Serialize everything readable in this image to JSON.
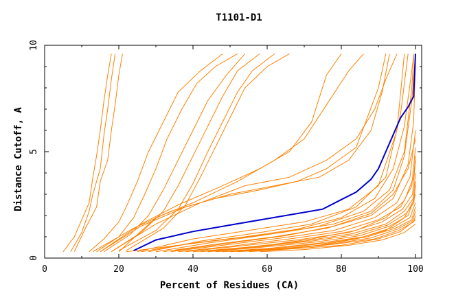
{
  "chart_data": {
    "type": "line",
    "title": "T1101-D1",
    "xlabel": "Percent of Residues (CA)",
    "ylabel": "Distance Cutoff, A",
    "xlim": [
      0,
      100
    ],
    "ylim": [
      0,
      10
    ],
    "xticks": [
      "0",
      "20",
      "40",
      "60",
      "80",
      "100"
    ],
    "yticks": [
      "0",
      "5",
      "10"
    ],
    "grid": false,
    "legend": "none",
    "colors": {
      "models": "#ff8000",
      "highlight": "#0000cc"
    },
    "highlight_series": {
      "points": [
        [
          24,
          0.35
        ],
        [
          30,
          0.85
        ],
        [
          40,
          1.25
        ],
        [
          50,
          1.55
        ],
        [
          60,
          1.85
        ],
        [
          70,
          2.15
        ],
        [
          75,
          2.3
        ],
        [
          80,
          2.75
        ],
        [
          84,
          3.1
        ],
        [
          88,
          3.7
        ],
        [
          90,
          4.2
        ],
        [
          92,
          5.0
        ],
        [
          94,
          5.8
        ],
        [
          96,
          6.6
        ],
        [
          98,
          7.1
        ],
        [
          99.5,
          7.6
        ],
        [
          100,
          9.6
        ]
      ]
    },
    "series": [
      {
        "points": [
          [
            5,
            0.3
          ],
          [
            8,
            1.0
          ],
          [
            10,
            1.8
          ],
          [
            12,
            2.6
          ],
          [
            13,
            3.8
          ],
          [
            14,
            4.8
          ],
          [
            15,
            6.0
          ],
          [
            16,
            7.4
          ],
          [
            17,
            8.6
          ],
          [
            18,
            9.6
          ]
        ]
      },
      {
        "points": [
          [
            7,
            0.3
          ],
          [
            10,
            1.2
          ],
          [
            12,
            2.2
          ],
          [
            13,
            3.0
          ],
          [
            15,
            4.2
          ],
          [
            16,
            5.8
          ],
          [
            17,
            7.0
          ],
          [
            18,
            8.4
          ],
          [
            19,
            9.6
          ]
        ]
      },
      {
        "points": [
          [
            8,
            0.3
          ],
          [
            11,
            1.4
          ],
          [
            14,
            2.4
          ],
          [
            15,
            3.6
          ],
          [
            17,
            4.6
          ],
          [
            18,
            6.0
          ],
          [
            19,
            7.2
          ],
          [
            20,
            8.6
          ],
          [
            21,
            9.6
          ]
        ]
      },
      {
        "points": [
          [
            12,
            0.3
          ],
          [
            16,
            0.9
          ],
          [
            20,
            1.7
          ],
          [
            22,
            2.4
          ],
          [
            25,
            3.6
          ],
          [
            28,
            5.0
          ],
          [
            32,
            6.4
          ],
          [
            36,
            7.8
          ],
          [
            42,
            8.8
          ],
          [
            48,
            9.6
          ]
        ]
      },
      {
        "points": [
          [
            14,
            0.3
          ],
          [
            20,
            1.0
          ],
          [
            24,
            1.9
          ],
          [
            27,
            3.0
          ],
          [
            30,
            4.2
          ],
          [
            33,
            5.6
          ],
          [
            37,
            7.0
          ],
          [
            41,
            8.2
          ],
          [
            46,
            9.0
          ],
          [
            52,
            9.6
          ]
        ]
      },
      {
        "points": [
          [
            16,
            0.3
          ],
          [
            23,
            1.1
          ],
          [
            28,
            2.0
          ],
          [
            32,
            3.2
          ],
          [
            36,
            4.6
          ],
          [
            40,
            6.0
          ],
          [
            44,
            7.4
          ],
          [
            49,
            8.6
          ],
          [
            54,
            9.6
          ]
        ]
      },
      {
        "points": [
          [
            18,
            0.3
          ],
          [
            26,
            1.2
          ],
          [
            32,
            2.2
          ],
          [
            36,
            3.4
          ],
          [
            40,
            4.8
          ],
          [
            44,
            6.2
          ],
          [
            48,
            7.6
          ],
          [
            52,
            8.8
          ],
          [
            58,
            9.6
          ]
        ]
      },
      {
        "points": [
          [
            20,
            0.35
          ],
          [
            30,
            1.3
          ],
          [
            36,
            2.3
          ],
          [
            40,
            3.5
          ],
          [
            44,
            5.0
          ],
          [
            48,
            6.4
          ],
          [
            52,
            7.8
          ],
          [
            56,
            8.8
          ],
          [
            62,
            9.6
          ]
        ]
      },
      {
        "points": [
          [
            22,
            0.35
          ],
          [
            32,
            1.4
          ],
          [
            38,
            2.5
          ],
          [
            42,
            3.8
          ],
          [
            46,
            5.2
          ],
          [
            50,
            6.6
          ],
          [
            54,
            8.0
          ],
          [
            60,
            9.0
          ],
          [
            66,
            9.6
          ]
        ]
      },
      {
        "points": [
          [
            15,
            0.3
          ],
          [
            26,
            1.6
          ],
          [
            36,
            2.5
          ],
          [
            48,
            3.4
          ],
          [
            58,
            4.2
          ],
          [
            66,
            5.0
          ],
          [
            72,
            6.4
          ],
          [
            76,
            8.6
          ],
          [
            80,
            9.6
          ]
        ]
      },
      {
        "points": [
          [
            20,
            0.3
          ],
          [
            30,
            1.9
          ],
          [
            40,
            2.6
          ],
          [
            52,
            3.6
          ],
          [
            62,
            4.6
          ],
          [
            70,
            5.6
          ],
          [
            76,
            7.2
          ],
          [
            82,
            8.8
          ],
          [
            86,
            9.6
          ]
        ]
      },
      {
        "points": [
          [
            13,
            0.3
          ],
          [
            24,
            1.4
          ],
          [
            34,
            2.2
          ],
          [
            46,
            2.8
          ],
          [
            58,
            3.2
          ],
          [
            68,
            3.6
          ],
          [
            76,
            4.2
          ],
          [
            84,
            5.2
          ],
          [
            90,
            8.0
          ],
          [
            92,
            9.6
          ]
        ]
      },
      {
        "points": [
          [
            15,
            0.3
          ],
          [
            26,
            1.5
          ],
          [
            38,
            2.4
          ],
          [
            50,
            3.0
          ],
          [
            62,
            3.4
          ],
          [
            74,
            3.8
          ],
          [
            82,
            4.6
          ],
          [
            88,
            6.0
          ],
          [
            91,
            7.8
          ],
          [
            93,
            9.6
          ]
        ]
      },
      {
        "points": [
          [
            18,
            0.3
          ],
          [
            30,
            1.6
          ],
          [
            42,
            2.6
          ],
          [
            54,
            3.4
          ],
          [
            66,
            3.8
          ],
          [
            76,
            4.6
          ],
          [
            84,
            5.6
          ],
          [
            89,
            7.0
          ],
          [
            92,
            8.4
          ],
          [
            95,
            9.6
          ]
        ]
      },
      {
        "points": [
          [
            25,
            0.3
          ],
          [
            40,
            0.9
          ],
          [
            55,
            1.3
          ],
          [
            70,
            1.7
          ],
          [
            82,
            2.3
          ],
          [
            90,
            3.4
          ],
          [
            95,
            6.0
          ],
          [
            97,
            9.6
          ]
        ]
      },
      {
        "points": [
          [
            28,
            0.3
          ],
          [
            42,
            0.8
          ],
          [
            58,
            1.2
          ],
          [
            72,
            1.6
          ],
          [
            84,
            2.4
          ],
          [
            92,
            3.8
          ],
          [
            96,
            6.8
          ],
          [
            98,
            9.6
          ]
        ]
      },
      {
        "points": [
          [
            30,
            0.3
          ],
          [
            44,
            0.7
          ],
          [
            60,
            1.1
          ],
          [
            74,
            1.5
          ],
          [
            86,
            2.2
          ],
          [
            93,
            3.2
          ],
          [
            97,
            5.0
          ],
          [
            99,
            8.0
          ],
          [
            99.6,
            9.6
          ]
        ]
      },
      {
        "points": [
          [
            32,
            0.3
          ],
          [
            46,
            0.65
          ],
          [
            62,
            1.0
          ],
          [
            76,
            1.4
          ],
          [
            88,
            2.0
          ],
          [
            94,
            2.8
          ],
          [
            98,
            4.4
          ],
          [
            99.5,
            6.4
          ],
          [
            100,
            9.2
          ]
        ]
      },
      {
        "points": [
          [
            34,
            0.3
          ],
          [
            48,
            0.6
          ],
          [
            64,
            0.95
          ],
          [
            78,
            1.3
          ],
          [
            89,
            1.9
          ],
          [
            95,
            2.6
          ],
          [
            98.5,
            3.8
          ],
          [
            100,
            6.0
          ]
        ]
      },
      {
        "points": [
          [
            36,
            0.3
          ],
          [
            50,
            0.55
          ],
          [
            66,
            0.9
          ],
          [
            80,
            1.25
          ],
          [
            90,
            1.8
          ],
          [
            96,
            2.4
          ],
          [
            99,
            3.4
          ],
          [
            100,
            5.2
          ]
        ]
      },
      {
        "points": [
          [
            38,
            0.3
          ],
          [
            52,
            0.55
          ],
          [
            68,
            0.85
          ],
          [
            82,
            1.2
          ],
          [
            91,
            1.7
          ],
          [
            96.5,
            2.3
          ],
          [
            99.2,
            3.0
          ],
          [
            100,
            4.6
          ]
        ]
      },
      {
        "points": [
          [
            40,
            0.3
          ],
          [
            54,
            0.5
          ],
          [
            70,
            0.8
          ],
          [
            83,
            1.15
          ],
          [
            92,
            1.6
          ],
          [
            97,
            2.2
          ],
          [
            99.4,
            2.8
          ],
          [
            100,
            4.0
          ]
        ]
      },
      {
        "points": [
          [
            42,
            0.3
          ],
          [
            56,
            0.5
          ],
          [
            72,
            0.8
          ],
          [
            84,
            1.1
          ],
          [
            92.5,
            1.55
          ],
          [
            97.5,
            2.1
          ],
          [
            99.6,
            2.6
          ],
          [
            100,
            3.6
          ]
        ]
      },
      {
        "points": [
          [
            44,
            0.3
          ],
          [
            58,
            0.5
          ],
          [
            73,
            0.75
          ],
          [
            85,
            1.05
          ],
          [
            93,
            1.5
          ],
          [
            98,
            2.0
          ],
          [
            100,
            3.0
          ]
        ]
      },
      {
        "points": [
          [
            46,
            0.3
          ],
          [
            60,
            0.45
          ],
          [
            74,
            0.7
          ],
          [
            86,
            1.0
          ],
          [
            94,
            1.45
          ],
          [
            98.5,
            1.9
          ],
          [
            100,
            2.6
          ]
        ]
      },
      {
        "points": [
          [
            48,
            0.3
          ],
          [
            62,
            0.45
          ],
          [
            76,
            0.7
          ],
          [
            87,
            1.0
          ],
          [
            94.5,
            1.4
          ],
          [
            99,
            1.8
          ],
          [
            100,
            2.4
          ]
        ]
      },
      {
        "points": [
          [
            50,
            0.3
          ],
          [
            64,
            0.45
          ],
          [
            77,
            0.65
          ],
          [
            88,
            0.95
          ],
          [
            95,
            1.35
          ],
          [
            99.2,
            1.75
          ],
          [
            100,
            2.2
          ]
        ]
      },
      {
        "points": [
          [
            52,
            0.3
          ],
          [
            66,
            0.45
          ],
          [
            78,
            0.65
          ],
          [
            89,
            0.9
          ],
          [
            95.5,
            1.3
          ],
          [
            99.5,
            1.7
          ],
          [
            100,
            2.0
          ]
        ]
      },
      {
        "points": [
          [
            55,
            0.3
          ],
          [
            68,
            0.45
          ],
          [
            80,
            0.6
          ],
          [
            90,
            0.9
          ],
          [
            96,
            1.25
          ],
          [
            100,
            1.8
          ]
        ]
      },
      {
        "points": [
          [
            58,
            0.3
          ],
          [
            70,
            0.4
          ],
          [
            82,
            0.6
          ],
          [
            91,
            0.85
          ],
          [
            97,
            1.2
          ],
          [
            100,
            1.6
          ]
        ]
      },
      {
        "points": [
          [
            22,
            0.3
          ],
          [
            36,
            0.6
          ],
          [
            50,
            0.9
          ],
          [
            64,
            1.2
          ],
          [
            78,
            1.6
          ],
          [
            88,
            2.2
          ],
          [
            94,
            3.2
          ],
          [
            97,
            4.8
          ],
          [
            99,
            7.4
          ],
          [
            100,
            9.6
          ]
        ]
      },
      {
        "points": [
          [
            26,
            0.3
          ],
          [
            40,
            0.7
          ],
          [
            54,
            1.0
          ],
          [
            68,
            1.35
          ],
          [
            80,
            1.9
          ],
          [
            89,
            2.8
          ],
          [
            94,
            4.2
          ],
          [
            97,
            6.2
          ],
          [
            99,
            8.8
          ],
          [
            99.6,
            9.6
          ]
        ]
      },
      {
        "points": [
          [
            60,
            0.35
          ],
          [
            74,
            0.6
          ],
          [
            84,
            0.9
          ],
          [
            92,
            1.3
          ],
          [
            97,
            1.9
          ],
          [
            99.5,
            2.7
          ],
          [
            100,
            3.4
          ]
        ]
      },
      {
        "points": [
          [
            35,
            0.35
          ],
          [
            50,
            0.7
          ],
          [
            65,
            1.05
          ],
          [
            78,
            1.5
          ],
          [
            88,
            2.1
          ],
          [
            94,
            3.0
          ],
          [
            98,
            4.2
          ],
          [
            100,
            5.6
          ]
        ]
      },
      {
        "points": [
          [
            45,
            0.35
          ],
          [
            60,
            0.6
          ],
          [
            72,
            0.9
          ],
          [
            84,
            1.3
          ],
          [
            92,
            1.9
          ],
          [
            97,
            2.7
          ],
          [
            99.5,
            3.8
          ],
          [
            100,
            4.8
          ]
        ]
      }
    ]
  }
}
